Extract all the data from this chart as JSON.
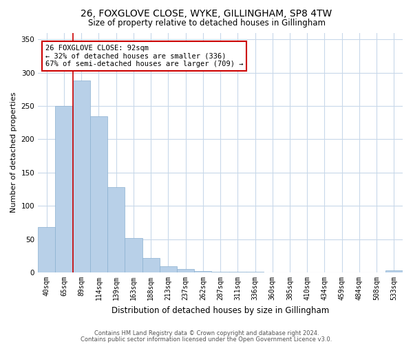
{
  "title": "26, FOXGLOVE CLOSE, WYKE, GILLINGHAM, SP8 4TW",
  "subtitle": "Size of property relative to detached houses in Gillingham",
  "xlabel": "Distribution of detached houses by size in Gillingham",
  "ylabel": "Number of detached properties",
  "categories": [
    "40sqm",
    "65sqm",
    "89sqm",
    "114sqm",
    "139sqm",
    "163sqm",
    "188sqm",
    "213sqm",
    "237sqm",
    "262sqm",
    "287sqm",
    "311sqm",
    "336sqm",
    "360sqm",
    "385sqm",
    "410sqm",
    "434sqm",
    "459sqm",
    "484sqm",
    "508sqm",
    "533sqm"
  ],
  "values": [
    68,
    250,
    288,
    235,
    128,
    52,
    22,
    9,
    5,
    2,
    1,
    1,
    1,
    0,
    0,
    0,
    0,
    0,
    0,
    0,
    3
  ],
  "bar_color": "#b8d0e8",
  "bar_edge_color": "#8ab0d0",
  "background_color": "#ffffff",
  "grid_color": "#c8d8ea",
  "vline_color": "#cc0000",
  "annotation_text": "26 FOXGLOVE CLOSE: 92sqm\n← 32% of detached houses are smaller (336)\n67% of semi-detached houses are larger (709) →",
  "annotation_box_color": "#ffffff",
  "annotation_box_edge": "#cc0000",
  "ylim": [
    0,
    360
  ],
  "yticks": [
    0,
    50,
    100,
    150,
    200,
    250,
    300,
    350
  ],
  "footer1": "Contains HM Land Registry data © Crown copyright and database right 2024.",
  "footer2": "Contains public sector information licensed under the Open Government Licence v3.0."
}
